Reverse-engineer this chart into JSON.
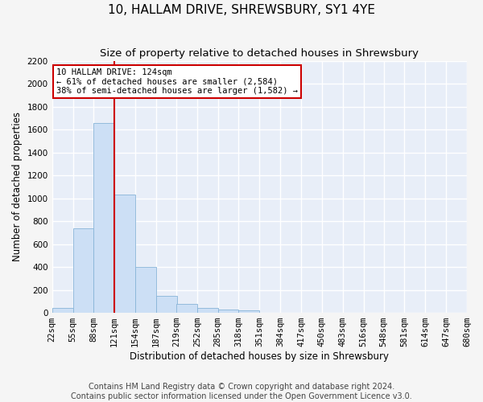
{
  "title": "10, HALLAM DRIVE, SHREWSBURY, SY1 4YE",
  "subtitle": "Size of property relative to detached houses in Shrewsbury",
  "xlabel": "Distribution of detached houses by size in Shrewsbury",
  "ylabel": "Number of detached properties",
  "bins_left": [
    22,
    55,
    88,
    121,
    154,
    187,
    219,
    252,
    285,
    318,
    351,
    384,
    417,
    450,
    483,
    516,
    548,
    581,
    614,
    647
  ],
  "bin_width": 33,
  "bar_heights": [
    40,
    740,
    1660,
    1030,
    400,
    150,
    75,
    40,
    30,
    22,
    0,
    0,
    0,
    0,
    0,
    0,
    0,
    0,
    0,
    0
  ],
  "bar_color": "#ccdff5",
  "bar_edge_color": "#88b4d8",
  "property_line_x": 121,
  "property_line_color": "#cc0000",
  "annotation_line1": "10 HALLAM DRIVE: 124sqm",
  "annotation_line2": "← 61% of detached houses are smaller (2,584)",
  "annotation_line3": "38% of semi-detached houses are larger (1,582) →",
  "annotation_box_color": "#ffffff",
  "annotation_box_edge": "#cc0000",
  "ylim_max": 2200,
  "yticks": [
    0,
    200,
    400,
    600,
    800,
    1000,
    1200,
    1400,
    1600,
    1800,
    2000,
    2200
  ],
  "xtick_labels": [
    "22sqm",
    "55sqm",
    "88sqm",
    "121sqm",
    "154sqm",
    "187sqm",
    "219sqm",
    "252sqm",
    "285sqm",
    "318sqm",
    "351sqm",
    "384sqm",
    "417sqm",
    "450sqm",
    "483sqm",
    "516sqm",
    "548sqm",
    "581sqm",
    "614sqm",
    "647sqm",
    "680sqm"
  ],
  "footer_line1": "Contains HM Land Registry data © Crown copyright and database right 2024.",
  "footer_line2": "Contains public sector information licensed under the Open Government Licence v3.0.",
  "fig_bg": "#f5f5f5",
  "ax_bg": "#e8eef8",
  "grid_color": "#ffffff",
  "title_fontsize": 11,
  "subtitle_fontsize": 9.5,
  "axis_label_fontsize": 8.5,
  "tick_fontsize": 7.5,
  "annot_fontsize": 7.5,
  "footer_fontsize": 7
}
